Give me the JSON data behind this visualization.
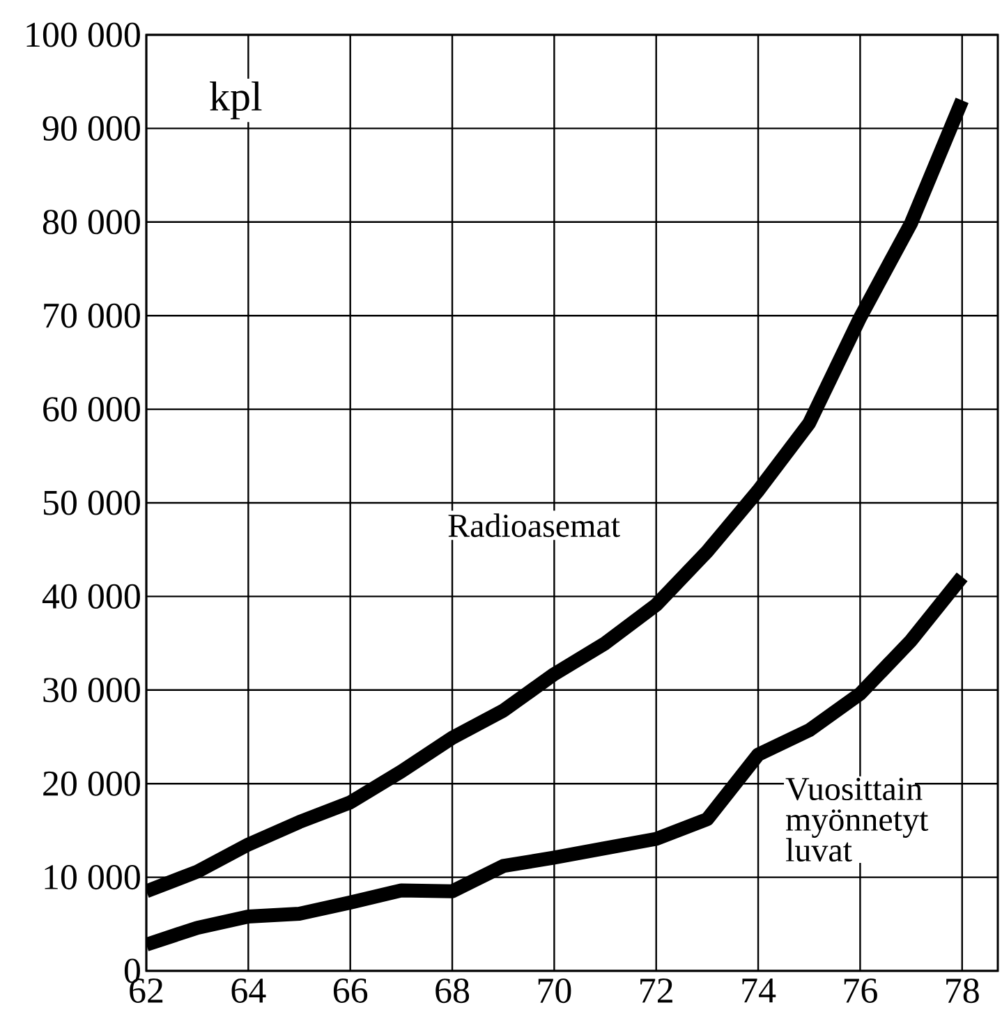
{
  "chart_data": {
    "type": "line",
    "ylabel": "kpl",
    "x": [
      62,
      63,
      64,
      65,
      66,
      67,
      68,
      69,
      70,
      71,
      72,
      73,
      74,
      75,
      76,
      77,
      78
    ],
    "series": [
      {
        "name": "Radioasemat",
        "color": "#000000",
        "values": [
          8500,
          10600,
          13500,
          15900,
          18000,
          21300,
          24900,
          27800,
          31700,
          35000,
          39100,
          44800,
          51300,
          58500,
          69800,
          79900,
          93000
        ]
      },
      {
        "name": "Vuosittain myönnetyt luvat",
        "color": "#000000",
        "values": [
          2800,
          4600,
          5800,
          6100,
          7300,
          8600,
          8500,
          11200,
          12100,
          13100,
          14100,
          16200,
          23100,
          25700,
          29600,
          35300,
          42100
        ]
      }
    ],
    "xlim": [
      62,
      78.7
    ],
    "ylim": [
      0,
      100000
    ],
    "xticks": [
      62,
      64,
      66,
      68,
      70,
      72,
      74,
      76,
      78
    ],
    "yticks": [
      {
        "value": 0,
        "label": "0"
      },
      {
        "value": 10000,
        "label": "10 000"
      },
      {
        "value": 20000,
        "label": "20 000"
      },
      {
        "value": 30000,
        "label": "30 000"
      },
      {
        "value": 40000,
        "label": "40 000"
      },
      {
        "value": 50000,
        "label": "50 000"
      },
      {
        "value": 60000,
        "label": "60 000"
      },
      {
        "value": 70000,
        "label": "70 000"
      },
      {
        "value": 80000,
        "label": "80 000"
      },
      {
        "value": 90000,
        "label": "90 000"
      },
      {
        "value": 100000,
        "label": "100 000"
      }
    ],
    "grid": true,
    "legend": false,
    "marker": "none",
    "line_style": "solid"
  }
}
